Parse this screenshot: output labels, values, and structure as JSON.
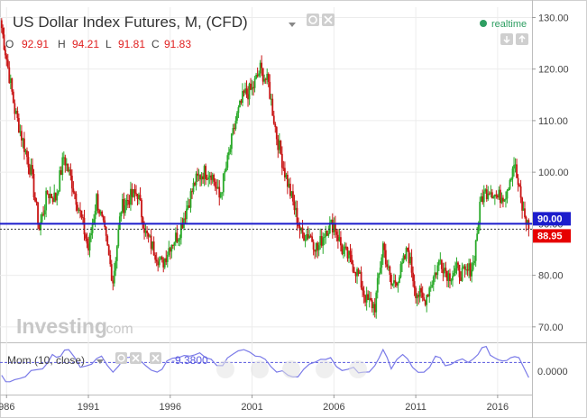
{
  "header": {
    "title": "US Dollar Index Futures, M, (CFD)",
    "realtime_label": "realtime",
    "ohlc": {
      "o_label": "O",
      "o_value": "92.91",
      "h_label": "H",
      "h_value": "94.21",
      "l_label": "L",
      "l_value": "91.81",
      "c_label": "C",
      "c_value": "91.83"
    }
  },
  "watermark": {
    "brand": "Investing",
    "suffix": ".com"
  },
  "price_axis": {
    "ticks": [
      "130.00",
      "120.00",
      "110.00",
      "100.00",
      "90.00",
      "80.00",
      "70.00"
    ],
    "horizontal_line_label": "90.00",
    "last_price_label": "88.95"
  },
  "indicator": {
    "label": "Mom (10, close)",
    "value": "-9.3800",
    "zero_label": "0.0000"
  },
  "time_axis": {
    "labels": [
      "986",
      "1991",
      "1996",
      "2001",
      "2006",
      "2011",
      "2016"
    ]
  },
  "colors": {
    "up": "#2aaa2a",
    "down": "#c81414",
    "horizontal_line": "#1c1ccc",
    "last_price_bg": "#e60000",
    "indicator_line": "#7b7be8",
    "realtime_dot": "#2e9e62"
  },
  "icons": {
    "dropdown": "chevron-down-icon",
    "settings": "gear-icon",
    "close": "close-icon",
    "arrows": "up-down-arrows-icon"
  },
  "chart_data": {
    "type": "candlestick",
    "interval": "monthly",
    "price_ylim": [
      67,
      132
    ],
    "momentum_ylim": [
      -20,
      12
    ],
    "horizontal_line": 90.0,
    "last_price": 88.95,
    "grid": true,
    "series": [
      {
        "name": "",
        "points": [
          [
            1985.7,
            128
          ],
          [
            1986.0,
            122
          ],
          [
            1986.5,
            112
          ],
          [
            1987.0,
            106
          ],
          [
            1987.5,
            100
          ],
          [
            1988.0,
            89
          ],
          [
            1988.5,
            96
          ],
          [
            1989.0,
            95
          ],
          [
            1989.5,
            103
          ],
          [
            1990.0,
            98
          ],
          [
            1990.5,
            92
          ],
          [
            1991.0,
            85
          ],
          [
            1991.5,
            95
          ],
          [
            1992.0,
            88
          ],
          [
            1992.5,
            79
          ],
          [
            1993.0,
            93
          ],
          [
            1993.5,
            95
          ],
          [
            1994.0,
            96
          ],
          [
            1994.5,
            88
          ],
          [
            1995.0,
            85
          ],
          [
            1995.5,
            82
          ],
          [
            1996.0,
            86
          ],
          [
            1996.5,
            88
          ],
          [
            1997.0,
            93
          ],
          [
            1997.5,
            98
          ],
          [
            1998.0,
            100
          ],
          [
            1998.5,
            100
          ],
          [
            1999.0,
            95
          ],
          [
            1999.5,
            102
          ],
          [
            2000.0,
            110
          ],
          [
            2000.5,
            115
          ],
          [
            2001.0,
            116
          ],
          [
            2001.5,
            120
          ],
          [
            2002.0,
            117
          ],
          [
            2002.5,
            107
          ],
          [
            2003.0,
            100
          ],
          [
            2003.5,
            94
          ],
          [
            2004.0,
            88
          ],
          [
            2004.5,
            88
          ],
          [
            2005.0,
            85
          ],
          [
            2005.5,
            89
          ],
          [
            2006.0,
            90
          ],
          [
            2006.5,
            85
          ],
          [
            2007.0,
            83
          ],
          [
            2007.5,
            80
          ],
          [
            2008.0,
            75
          ],
          [
            2008.5,
            74
          ],
          [
            2009.0,
            86
          ],
          [
            2009.5,
            78
          ],
          [
            2010.0,
            80
          ],
          [
            2010.5,
            85
          ],
          [
            2011.0,
            77
          ],
          [
            2011.5,
            75
          ],
          [
            2012.0,
            79
          ],
          [
            2012.5,
            83
          ],
          [
            2013.0,
            80
          ],
          [
            2013.5,
            81
          ],
          [
            2014.0,
            80
          ],
          [
            2014.5,
            82
          ],
          [
            2015.0,
            95
          ],
          [
            2015.5,
            97
          ],
          [
            2016.0,
            95
          ],
          [
            2016.5,
            96
          ],
          [
            2017.0,
            102
          ],
          [
            2017.5,
            93
          ],
          [
            2017.9,
            89
          ]
        ]
      }
    ],
    "momentum": [
      [
        1985.7,
        -8
      ],
      [
        1986.2,
        -12
      ],
      [
        1986.8,
        -10
      ],
      [
        1987.5,
        -5
      ],
      [
        1988.2,
        -4
      ],
      [
        1988.8,
        5
      ],
      [
        1989.3,
        4
      ],
      [
        1989.8,
        8
      ],
      [
        1990.5,
        -3
      ],
      [
        1991.2,
        -1
      ],
      [
        1991.8,
        4
      ],
      [
        1992.5,
        -6
      ],
      [
        1993.2,
        3
      ],
      [
        1993.8,
        5
      ],
      [
        1994.5,
        -2
      ],
      [
        1995.2,
        -6
      ],
      [
        1995.8,
        1
      ],
      [
        1996.5,
        3
      ],
      [
        1997.2,
        4
      ],
      [
        1997.8,
        6
      ],
      [
        1998.5,
        2
      ],
      [
        1999.2,
        -2
      ],
      [
        1999.8,
        5
      ],
      [
        2000.5,
        8
      ],
      [
        2001.2,
        4
      ],
      [
        2001.8,
        2
      ],
      [
        2002.5,
        -6
      ],
      [
        2003.2,
        -8
      ],
      [
        2003.8,
        -9
      ],
      [
        2004.5,
        -1
      ],
      [
        2005.2,
        2
      ],
      [
        2005.8,
        3
      ],
      [
        2006.5,
        -5
      ],
      [
        2007.2,
        -3
      ],
      [
        2007.8,
        -6
      ],
      [
        2008.5,
        -2
      ],
      [
        2009.0,
        8
      ],
      [
        2009.5,
        -4
      ],
      [
        2010.2,
        5
      ],
      [
        2010.8,
        -3
      ],
      [
        2011.5,
        -6
      ],
      [
        2012.2,
        4
      ],
      [
        2012.8,
        -2
      ],
      [
        2013.5,
        1
      ],
      [
        2014.2,
        0
      ],
      [
        2014.8,
        5
      ],
      [
        2015.3,
        10
      ],
      [
        2015.8,
        3
      ],
      [
        2016.3,
        1
      ],
      [
        2016.8,
        3
      ],
      [
        2017.3,
        3
      ],
      [
        2017.9,
        -9.38
      ]
    ],
    "x_range": [
      1985.6,
      2018.1
    ]
  }
}
